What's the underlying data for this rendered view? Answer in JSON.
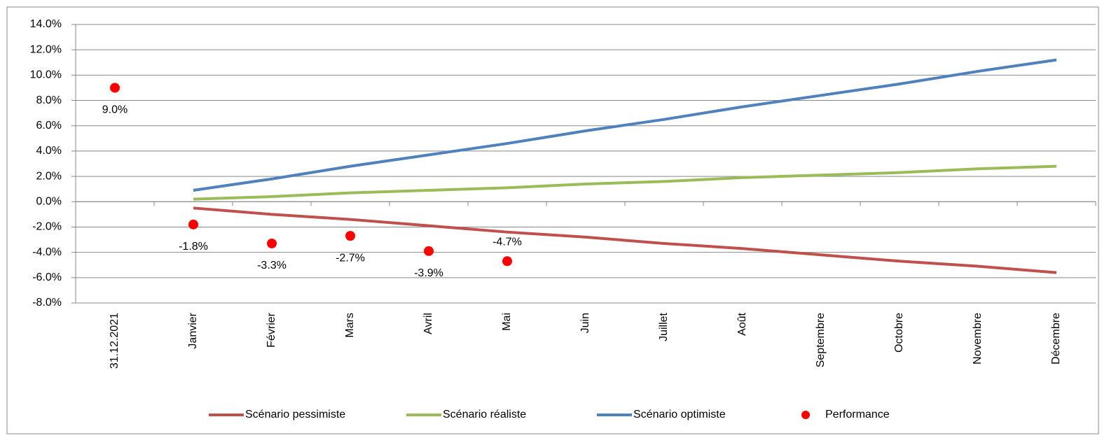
{
  "chart_data": {
    "type": "line",
    "categories": [
      "31.12.2021",
      "Janvier",
      "Février",
      "Mars",
      "Avril",
      "Mai",
      "Juin",
      "Juillet",
      "Août",
      "Septembre",
      "Octobre",
      "Novembre",
      "Décembre"
    ],
    "ylim": [
      -8,
      14
    ],
    "yticks": [
      {
        "value": -8,
        "label": "-8.0%"
      },
      {
        "value": -6,
        "label": "-6.0%"
      },
      {
        "value": -4,
        "label": "-4.0%"
      },
      {
        "value": -2,
        "label": "-2.0%"
      },
      {
        "value": 0,
        "label": "0.0%"
      },
      {
        "value": 2,
        "label": "2.0%"
      },
      {
        "value": 4,
        "label": "4.0%"
      },
      {
        "value": 6,
        "label": "6.0%"
      },
      {
        "value": 8,
        "label": "8.0%"
      },
      {
        "value": 10,
        "label": "10.0%"
      },
      {
        "value": 12,
        "label": "12.0%"
      },
      {
        "value": 14,
        "label": "14.0%"
      }
    ],
    "grid": true,
    "legend": "bottom",
    "series": [
      {
        "name": "Scénario pessimiste",
        "type": "line",
        "color": "#c0504d",
        "values": [
          null,
          -0.5,
          -1.0,
          -1.4,
          -1.9,
          -2.4,
          -2.8,
          -3.3,
          -3.7,
          -4.2,
          -4.7,
          -5.1,
          -5.6
        ]
      },
      {
        "name": "Scénario réaliste",
        "type": "line",
        "color": "#9bbb59",
        "values": [
          null,
          0.2,
          0.4,
          0.7,
          0.9,
          1.1,
          1.4,
          1.6,
          1.9,
          2.1,
          2.3,
          2.6,
          2.8
        ]
      },
      {
        "name": "Scénario optimiste",
        "type": "line",
        "color": "#4f81bd",
        "values": [
          null,
          0.9,
          1.8,
          2.8,
          3.7,
          4.6,
          5.6,
          6.5,
          7.5,
          8.4,
          9.3,
          10.3,
          11.2
        ]
      },
      {
        "name": "Performance",
        "type": "scatter",
        "color": "#ff0000",
        "values": [
          9.0,
          -1.8,
          -3.3,
          -2.7,
          -3.9,
          -4.7,
          null,
          null,
          null,
          null,
          null,
          null,
          null
        ],
        "value_labels": [
          "9.0%",
          "-1.8%",
          "-3.3%",
          "-2.7%",
          "-3.9%",
          "-4.7%",
          null,
          null,
          null,
          null,
          null,
          null,
          null
        ]
      }
    ]
  }
}
